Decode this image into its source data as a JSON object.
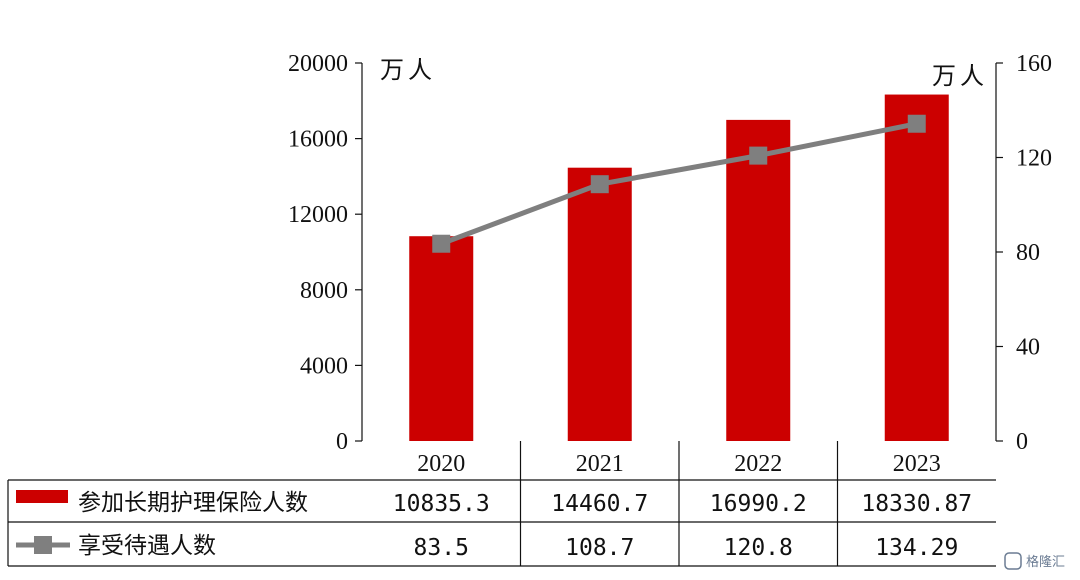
{
  "chart_data": {
    "type": "bar",
    "categories": [
      "2020",
      "2021",
      "2022",
      "2023"
    ],
    "series": [
      {
        "name": "参加长期护理保险人数",
        "chart": "bar",
        "axis": "left",
        "values": [
          10835.3,
          14460.7,
          16990.2,
          18330.87
        ],
        "labels": [
          "10835.3",
          "14460.7",
          "16990.2",
          "18330.87"
        ],
        "color": "#cc0000"
      },
      {
        "name": "享受待遇人数",
        "chart": "line",
        "axis": "right",
        "values": [
          83.5,
          108.7,
          120.8,
          134.29
        ],
        "labels": [
          "83.5",
          "108.7",
          "120.8",
          "134.29"
        ],
        "color": "#7f7f7f"
      }
    ],
    "left_axis": {
      "unit": "万人",
      "ylim": [
        0,
        20000
      ],
      "ticks": [
        "0",
        "4000",
        "8000",
        "12000",
        "16000",
        "20000"
      ]
    },
    "right_axis": {
      "unit": "万人",
      "ylim": [
        0,
        160
      ],
      "ticks": [
        "0",
        "40",
        "80",
        "120",
        "160"
      ]
    },
    "data_table": true,
    "grid": false,
    "legend": "in-table-left"
  },
  "watermark": "格隆汇"
}
